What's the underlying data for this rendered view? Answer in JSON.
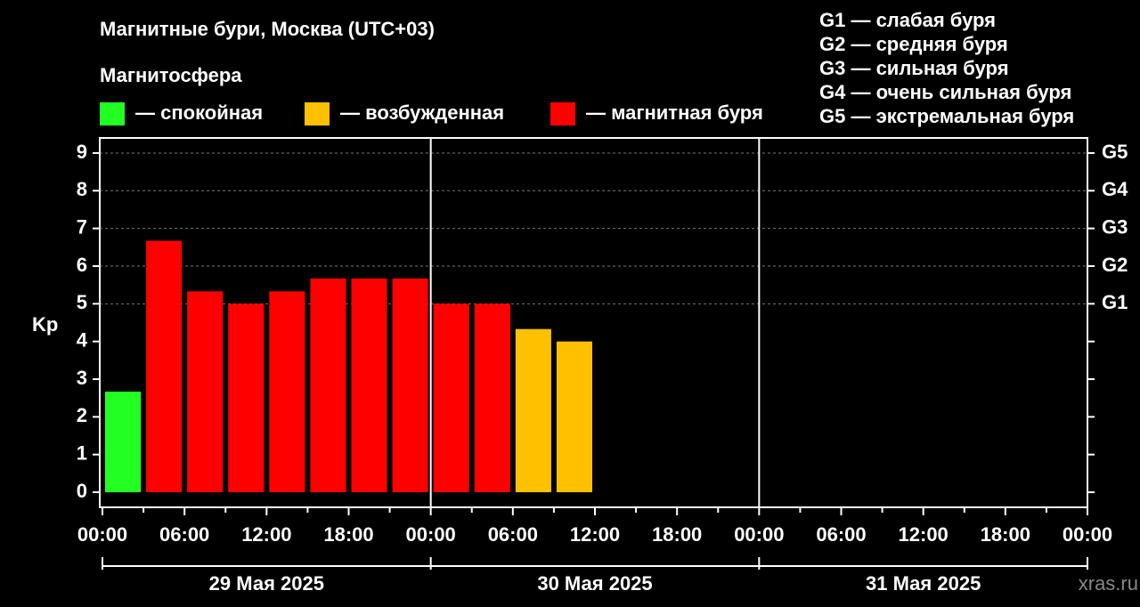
{
  "chart_data": {
    "type": "bar",
    "title": "Магнитные бури, Москва (UTC+03)",
    "legend_title": "Магнитосфера",
    "legend": [
      {
        "name": "— спокойная",
        "color": "#22ff22"
      },
      {
        "name": "— возбужденная",
        "color": "#ffc000"
      },
      {
        "name": "— магнитная буря",
        "color": "#ff0000"
      }
    ],
    "scale_legend": [
      "G1 — слабая буря",
      "G2 — средняя буря",
      "G3 — сильная буря",
      "G4 — очень сильная буря",
      "G5 — экстремальная буря"
    ],
    "ylabel": "Kp",
    "x": [
      0,
      3,
      6,
      9,
      12,
      15,
      18,
      21,
      24,
      27,
      30,
      33
    ],
    "bar_width": 3,
    "values": [
      2.67,
      6.67,
      5.33,
      5.0,
      5.33,
      5.67,
      5.67,
      5.67,
      5.0,
      5.0,
      4.33,
      4.0
    ],
    "colors": [
      "#22ff22",
      "#ff0000",
      "#ff0000",
      "#ff0000",
      "#ff0000",
      "#ff0000",
      "#ff0000",
      "#ff0000",
      "#ff0000",
      "#ff0000",
      "#ffc000",
      "#ffc000"
    ],
    "xlim": [
      0,
      72
    ],
    "xticks": [
      {
        "value": 0,
        "label": "00:00"
      },
      {
        "value": 6,
        "label": "06:00"
      },
      {
        "value": 12,
        "label": "12:00"
      },
      {
        "value": 18,
        "label": "18:00"
      },
      {
        "value": 24,
        "label": "00:00"
      },
      {
        "value": 30,
        "label": "06:00"
      },
      {
        "value": 36,
        "label": "12:00"
      },
      {
        "value": 42,
        "label": "18:00"
      },
      {
        "value": 48,
        "label": "00:00"
      },
      {
        "value": 54,
        "label": "06:00"
      },
      {
        "value": 60,
        "label": "12:00"
      },
      {
        "value": 66,
        "label": "18:00"
      },
      {
        "value": 72,
        "label": "00:00"
      }
    ],
    "days": [
      "29 Мая 2025",
      "30 Мая 2025",
      "31 Мая 2025"
    ],
    "day_length": 24,
    "ylim": [
      -0.4,
      9.4
    ],
    "yticks": [
      0,
      1,
      2,
      3,
      4,
      5,
      6,
      7,
      8,
      9
    ],
    "y2ticks": [
      {
        "value": 5,
        "label": "G1"
      },
      {
        "value": 6,
        "label": "G2"
      },
      {
        "value": 7,
        "label": "G3"
      },
      {
        "value": 8,
        "label": "G4"
      },
      {
        "value": 9,
        "label": "G5"
      }
    ],
    "grid": true,
    "watermark": "xras.ru"
  }
}
